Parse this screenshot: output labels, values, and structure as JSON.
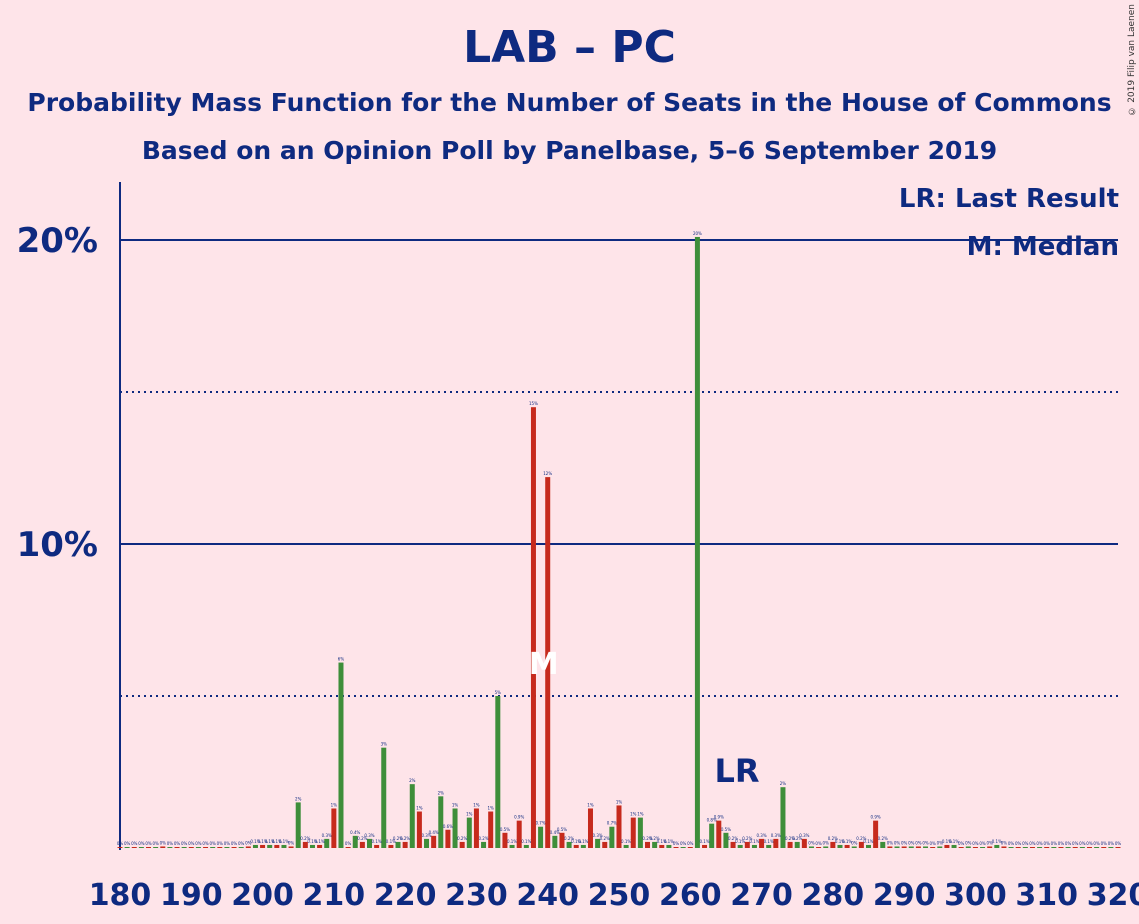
{
  "title": "LAB – PC",
  "subtitle1": "Probability Mass Function for the Number of Seats in the House of Commons",
  "subtitle2": "Based on an Opinion Poll by Panelbase, 5–6 September 2019",
  "copyright": "© 2019 Filip van Laenen",
  "legend": {
    "lr": "LR: Last Result",
    "m": "M: Median"
  },
  "markers": {
    "lr_label": "LR",
    "m_label": "M",
    "last_result_seat": 262,
    "median_seat": 240
  },
  "colors": {
    "background": "#fee4e9",
    "text": "#0e2a80",
    "green": "#3e8e3a",
    "red": "#c62a1d"
  },
  "chart_data": {
    "type": "bar",
    "xlabel": "",
    "ylabel": "",
    "xlim": [
      180,
      320
    ],
    "ylim": [
      0,
      22
    ],
    "xticks": [
      180,
      190,
      200,
      210,
      220,
      230,
      240,
      250,
      260,
      270,
      280,
      290,
      300,
      310,
      320
    ],
    "yticks_solid": [
      {
        "value": 10,
        "label": "10%"
      },
      {
        "value": 20,
        "label": "20%"
      }
    ],
    "yticks_dotted": [
      5,
      15
    ],
    "series": [
      {
        "color": "green",
        "values": [
          [
            181,
            0.02
          ],
          [
            183,
            0.02
          ],
          [
            185,
            0.02
          ],
          [
            187,
            0.02
          ],
          [
            189,
            0.02
          ],
          [
            191,
            0.02
          ],
          [
            193,
            0.02
          ],
          [
            195,
            0.02
          ],
          [
            197,
            0.02
          ],
          [
            199,
            0.1
          ],
          [
            201,
            0.1
          ],
          [
            203,
            0.1
          ],
          [
            205,
            1.5
          ],
          [
            207,
            0.1
          ],
          [
            209,
            0.3
          ],
          [
            211,
            6.1
          ],
          [
            213,
            0.4
          ],
          [
            215,
            0.3
          ],
          [
            217,
            3.3
          ],
          [
            219,
            0.2
          ],
          [
            221,
            2.1
          ],
          [
            223,
            0.3
          ],
          [
            225,
            1.7
          ],
          [
            227,
            1.3
          ],
          [
            229,
            1.0
          ],
          [
            231,
            0.2
          ],
          [
            233,
            5.0
          ],
          [
            235,
            0.1
          ],
          [
            237,
            0.1
          ],
          [
            239,
            0.7
          ],
          [
            241,
            0.4
          ],
          [
            243,
            0.2
          ],
          [
            245,
            0.1
          ],
          [
            247,
            0.3
          ],
          [
            249,
            0.7
          ],
          [
            251,
            0.1
          ],
          [
            253,
            1.0
          ],
          [
            255,
            0.2
          ],
          [
            257,
            0.1
          ],
          [
            259,
            0.02
          ],
          [
            261,
            20.1
          ],
          [
            263,
            0.8
          ],
          [
            265,
            0.5
          ],
          [
            267,
            0.1
          ],
          [
            269,
            0.1
          ],
          [
            271,
            0.1
          ],
          [
            273,
            2.0
          ],
          [
            275,
            0.2
          ],
          [
            277,
            0.05
          ],
          [
            279,
            0.05
          ],
          [
            281,
            0.1
          ],
          [
            283,
            0.05
          ],
          [
            285,
            0.1
          ],
          [
            287,
            0.2
          ],
          [
            289,
            0.05
          ],
          [
            291,
            0.05
          ],
          [
            293,
            0.05
          ],
          [
            295,
            0.05
          ],
          [
            297,
            0.1
          ],
          [
            299,
            0.05
          ],
          [
            301,
            0.02
          ],
          [
            303,
            0.1
          ],
          [
            305,
            0.02
          ],
          [
            307,
            0.02
          ],
          [
            309,
            0.02
          ],
          [
            311,
            0.02
          ],
          [
            313,
            0.02
          ],
          [
            315,
            0.02
          ],
          [
            317,
            0.02
          ],
          [
            319,
            0.02
          ]
        ]
      },
      {
        "color": "red",
        "values": [
          [
            180,
            0.02
          ],
          [
            182,
            0.02
          ],
          [
            184,
            0.02
          ],
          [
            186,
            0.05
          ],
          [
            188,
            0.02
          ],
          [
            190,
            0.02
          ],
          [
            192,
            0.02
          ],
          [
            194,
            0.02
          ],
          [
            196,
            0.02
          ],
          [
            198,
            0.05
          ],
          [
            200,
            0.1
          ],
          [
            202,
            0.1
          ],
          [
            204,
            0.05
          ],
          [
            206,
            0.2
          ],
          [
            208,
            0.1
          ],
          [
            210,
            1.3
          ],
          [
            212,
            0.02
          ],
          [
            214,
            0.2
          ],
          [
            216,
            0.1
          ],
          [
            218,
            0.1
          ],
          [
            220,
            0.2
          ],
          [
            222,
            1.2
          ],
          [
            224,
            0.4
          ],
          [
            226,
            0.6
          ],
          [
            228,
            0.2
          ],
          [
            230,
            1.3
          ],
          [
            232,
            1.2
          ],
          [
            234,
            0.5
          ],
          [
            236,
            0.9
          ],
          [
            238,
            14.5
          ],
          [
            240,
            12.2
          ],
          [
            242,
            0.5
          ],
          [
            244,
            0.1
          ],
          [
            246,
            1.3
          ],
          [
            248,
            0.2
          ],
          [
            250,
            1.4
          ],
          [
            252,
            1.0
          ],
          [
            254,
            0.2
          ],
          [
            256,
            0.1
          ],
          [
            258,
            0.02
          ],
          [
            260,
            0.02
          ],
          [
            262,
            0.1
          ],
          [
            264,
            0.9
          ],
          [
            266,
            0.2
          ],
          [
            268,
            0.2
          ],
          [
            270,
            0.3
          ],
          [
            272,
            0.3
          ],
          [
            274,
            0.2
          ],
          [
            276,
            0.3
          ],
          [
            278,
            0.02
          ],
          [
            280,
            0.2
          ],
          [
            282,
            0.1
          ],
          [
            284,
            0.2
          ],
          [
            286,
            0.9
          ],
          [
            288,
            0.05
          ],
          [
            290,
            0.05
          ],
          [
            292,
            0.05
          ],
          [
            294,
            0.02
          ],
          [
            296,
            0.1
          ],
          [
            298,
            0.02
          ],
          [
            300,
            0.02
          ],
          [
            302,
            0.05
          ],
          [
            304,
            0.05
          ],
          [
            306,
            0.02
          ],
          [
            308,
            0.02
          ],
          [
            310,
            0.02
          ],
          [
            312,
            0.02
          ],
          [
            314,
            0.02
          ],
          [
            316,
            0.02
          ],
          [
            318,
            0.02
          ],
          [
            320,
            0.02
          ]
        ]
      }
    ]
  }
}
